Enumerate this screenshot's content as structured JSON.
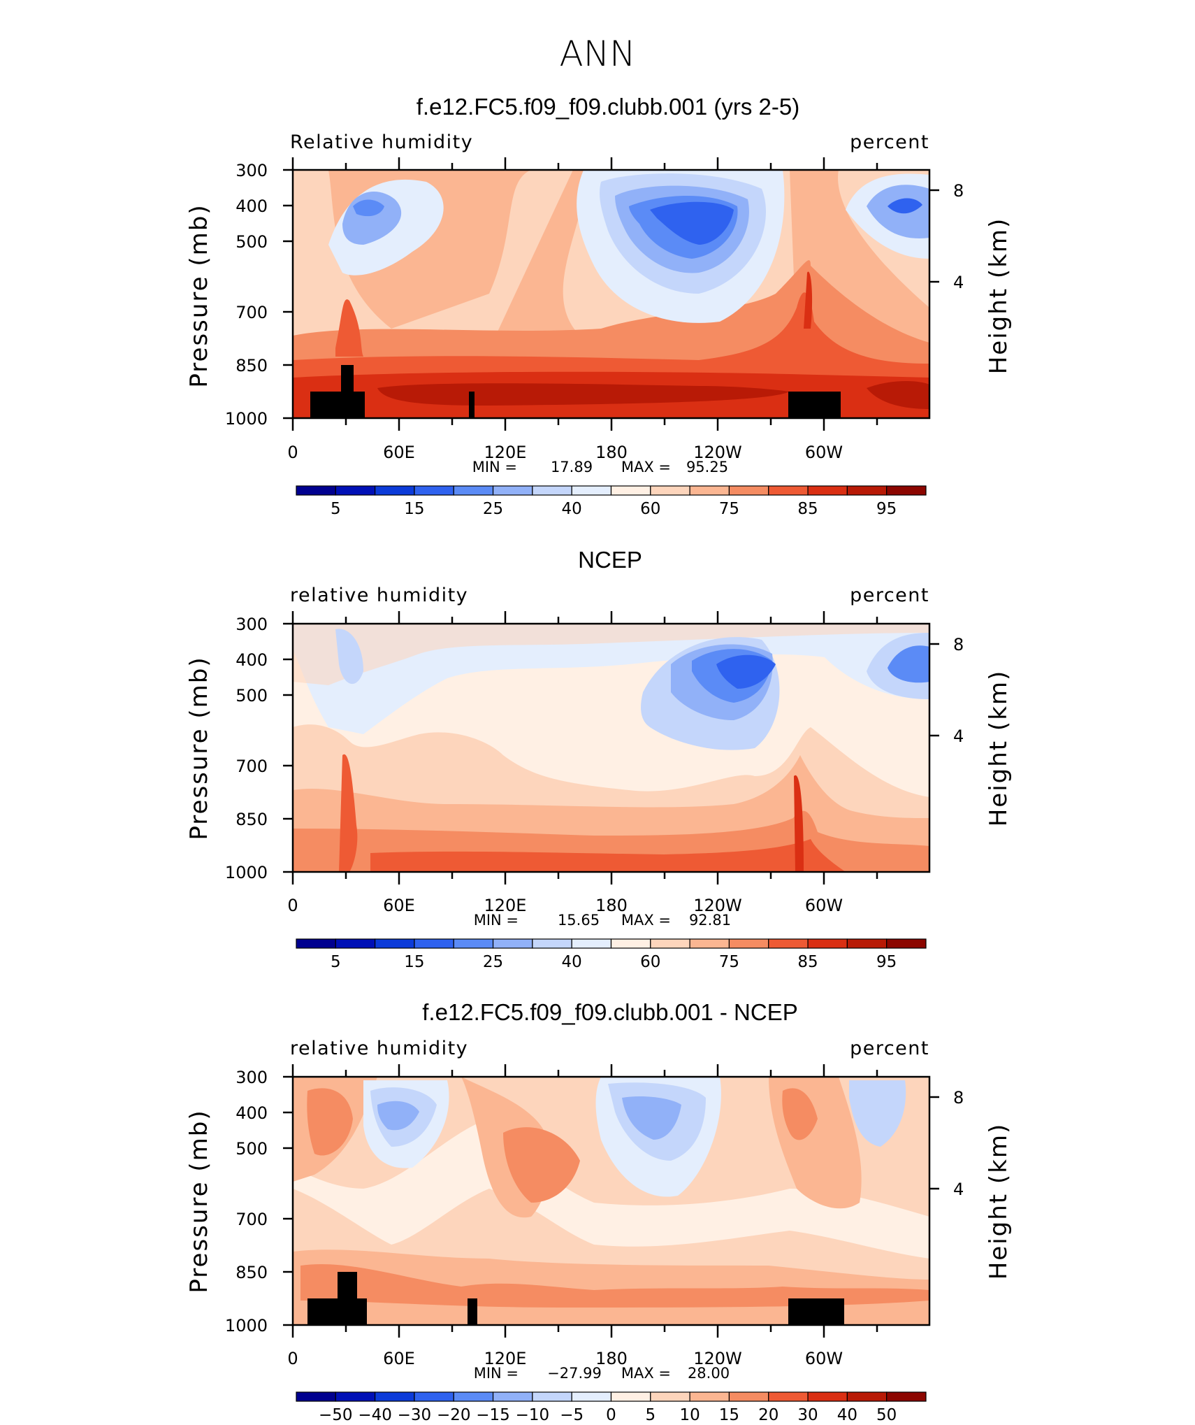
{
  "figure_title": "ANN",
  "colors": {
    "abs_scale": [
      "#00008f",
      "#0010b6",
      "#0c3bd9",
      "#2f62ef",
      "#5b8bf6",
      "#91b1f8",
      "#c4d6fb",
      "#e4eefd",
      "#fff0e4",
      "#fdd5bc",
      "#fbb692",
      "#f58c62",
      "#ee5a34",
      "#da2f13",
      "#b81a06",
      "#8c0600"
    ],
    "diff_scale": [
      "#00008f",
      "#0010b6",
      "#0c3bd9",
      "#2f62ef",
      "#5b8bf6",
      "#91b1f8",
      "#c4d6fb",
      "#e4eefd",
      "#fff0e4",
      "#fdd5bc",
      "#fbb692",
      "#f58c62",
      "#ee5a34",
      "#da2f13",
      "#b81a06",
      "#8c0600"
    ],
    "land_mask": "#000000"
  },
  "chart_data": [
    {
      "type": "heatmap",
      "title": "f.e12.FC5.f09_f09.clubb.001 (yrs 2-5)",
      "left_label": "Relative humidity",
      "right_label": "percent",
      "ylabel": "Pressure (mb)",
      "ylabel_right": "Height (km)",
      "x_ticks": [
        "0",
        "60E",
        "120E",
        "180",
        "120W",
        "60W"
      ],
      "y_ticks": [
        "300",
        "400",
        "500",
        "700",
        "850",
        "1000"
      ],
      "y_ticks_right": [
        "8",
        "4"
      ],
      "stats": {
        "min_label": "MIN =",
        "min": "17.89",
        "max_label": "MAX =",
        "max": "95.25"
      },
      "colorbar_labels": [
        "5",
        "15",
        "25",
        "40",
        "60",
        "75",
        "85",
        "95"
      ],
      "land_mask": true
    },
    {
      "type": "heatmap",
      "title": "NCEP",
      "left_label": "relative humidity",
      "right_label": "percent",
      "ylabel": "Pressure (mb)",
      "ylabel_right": "Height (km)",
      "x_ticks": [
        "0",
        "60E",
        "120E",
        "180",
        "120W",
        "60W"
      ],
      "y_ticks": [
        "300",
        "400",
        "500",
        "700",
        "850",
        "1000"
      ],
      "y_ticks_right": [
        "8",
        "4"
      ],
      "stats": {
        "min_label": "MIN =",
        "min": "15.65",
        "max_label": "MAX =",
        "max": "92.81"
      },
      "colorbar_labels": [
        "5",
        "15",
        "25",
        "40",
        "60",
        "75",
        "85",
        "95"
      ],
      "land_mask": false
    },
    {
      "type": "heatmap",
      "title": "f.e12.FC5.f09_f09.clubb.001 - NCEP",
      "left_label": "relative humidity",
      "right_label": "percent",
      "ylabel": "Pressure (mb)",
      "ylabel_right": "Height (km)",
      "x_ticks": [
        "0",
        "60E",
        "120E",
        "180",
        "120W",
        "60W"
      ],
      "y_ticks": [
        "300",
        "400",
        "500",
        "700",
        "850",
        "1000"
      ],
      "y_ticks_right": [
        "8",
        "4"
      ],
      "stats": {
        "min_label": "MIN =",
        "min": "−27.99",
        "max_label": "MAX =",
        "max": "28.00"
      },
      "colorbar_labels": [
        "−50",
        "−40",
        "−30",
        "−20",
        "−15",
        "−10",
        "−5",
        "0",
        "5",
        "10",
        "15",
        "20",
        "30",
        "40",
        "50"
      ],
      "land_mask": true
    }
  ]
}
